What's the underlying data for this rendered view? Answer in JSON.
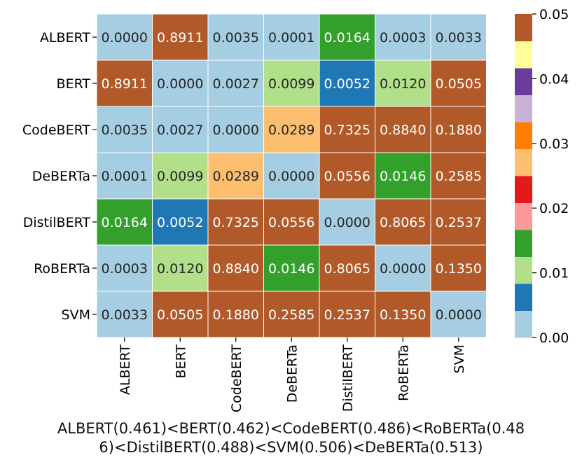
{
  "chart_data": {
    "type": "heatmap",
    "rows": [
      "ALBERT",
      "BERT",
      "CodeBERT",
      "DeBERTa",
      "DistilBERT",
      "RoBERTa",
      "SVM"
    ],
    "columns": [
      "ALBERT",
      "BERT",
      "CodeBERT",
      "DeBERTa",
      "DistilBERT",
      "RoBERTa",
      "SVM"
    ],
    "values": [
      [
        0.0,
        0.8911,
        0.0035,
        0.0001,
        0.0164,
        0.0003,
        0.0033
      ],
      [
        0.8911,
        0.0,
        0.0027,
        0.0099,
        0.0052,
        0.012,
        0.0505
      ],
      [
        0.0035,
        0.0027,
        0.0,
        0.0289,
        0.7325,
        0.884,
        0.188
      ],
      [
        0.0001,
        0.0099,
        0.0289,
        0.0,
        0.0556,
        0.0146,
        0.2585
      ],
      [
        0.0164,
        0.0052,
        0.7325,
        0.0556,
        0.0,
        0.8065,
        0.2537
      ],
      [
        0.0003,
        0.012,
        0.884,
        0.0146,
        0.8065,
        0.0,
        0.135
      ],
      [
        0.0033,
        0.0505,
        0.188,
        0.2585,
        0.2537,
        0.135,
        0.0
      ]
    ],
    "value_labels": [
      [
        "0.0000",
        "0.8911",
        "0.0035",
        "0.0001",
        "0.0164",
        "0.0003",
        "0.0033"
      ],
      [
        "0.8911",
        "0.0000",
        "0.0027",
        "0.0099",
        "0.0052",
        "0.0120",
        "0.0505"
      ],
      [
        "0.0035",
        "0.0027",
        "0.0000",
        "0.0289",
        "0.7325",
        "0.8840",
        "0.1880"
      ],
      [
        "0.0001",
        "0.0099",
        "0.0289",
        "0.0000",
        "0.0556",
        "0.0146",
        "0.2585"
      ],
      [
        "0.0164",
        "0.0052",
        "0.7325",
        "0.0556",
        "0.0000",
        "0.8065",
        "0.2537"
      ],
      [
        "0.0003",
        "0.0120",
        "0.8840",
        "0.0146",
        "0.8065",
        "0.0000",
        "0.1350"
      ],
      [
        "0.0033",
        "0.0505",
        "0.1880",
        "0.2585",
        "0.2537",
        "0.1350",
        "0.0000"
      ]
    ],
    "colorscale": {
      "type": "discrete",
      "min": 0.0,
      "max": 0.05,
      "colors": [
        "#a6cee3",
        "#1f78b4",
        "#b2df8a",
        "#33a02c",
        "#fb9a99",
        "#e31a1c",
        "#fdbf6f",
        "#ff7f00",
        "#cab2d6",
        "#6a3d9a",
        "#ffff99",
        "#b15928"
      ],
      "ticks": [
        0.0,
        0.01,
        0.02,
        0.03,
        0.04,
        0.05
      ],
      "tick_labels": [
        "0.00",
        "0.01",
        "0.02",
        "0.03",
        "0.04",
        "0.05"
      ]
    },
    "caption": [
      "ALBERT(0.461)<BERT(0.462)<CodeBERT(0.486)<RoBERTa(0.48",
      "6)<DistilBERT(0.488)<SVM(0.506)<DeBERTa(0.513)"
    ],
    "title": "",
    "xlabel": "",
    "ylabel": ""
  }
}
